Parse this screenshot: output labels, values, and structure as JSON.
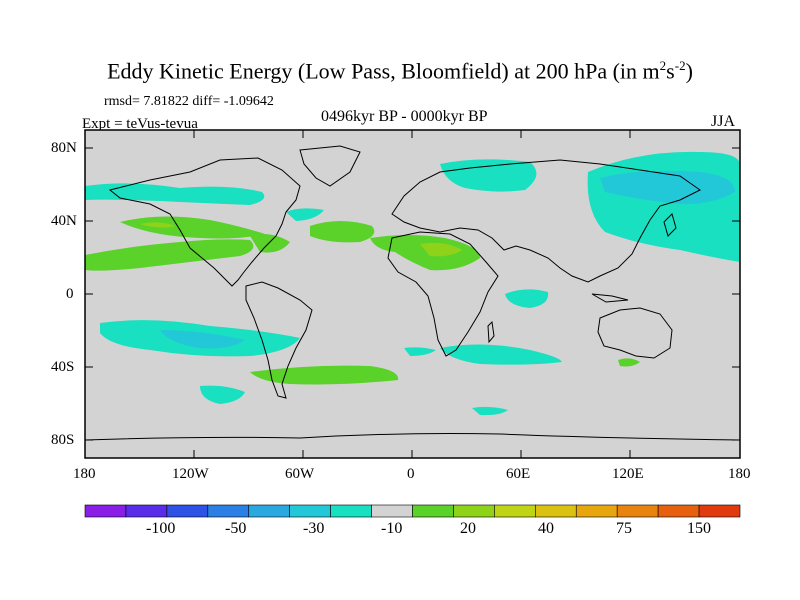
{
  "title": {
    "main": "Eddy Kinetic Energy (Low Pass, Bloomfield) at 200 hPa (in m",
    "sup1": "2",
    "mid": "s",
    "sup2": "-2",
    "close": ")"
  },
  "stats": "rmsd= 7.81822 diff= -1.09642",
  "period": "0496kyr BP - 0000kyr BP",
  "experiment": "Expt = teVus-tevua",
  "season": "JJA",
  "map": {
    "background_color": "#d3d3d3",
    "coastline_color": "#000000",
    "lat_ticks": [
      "80N",
      "40N",
      "0",
      "40S",
      "80S"
    ],
    "lon_ticks": [
      "180",
      "120W",
      "60W",
      "0",
      "60E",
      "120E",
      "180"
    ]
  },
  "colorbar": {
    "colors": [
      "#8a1ee6",
      "#5a2ee8",
      "#2f52e6",
      "#2c7fe4",
      "#2aa8e0",
      "#22c8d8",
      "#18e0c0",
      "#d3d3d3",
      "#5ad22a",
      "#8fd21a",
      "#bed414",
      "#dcc210",
      "#e8a60e",
      "#e8840e",
      "#e6600e",
      "#e03a0e"
    ],
    "labels": [
      "-100",
      "-50",
      "-30",
      "-10",
      "20",
      "40",
      "75",
      "150"
    ]
  }
}
